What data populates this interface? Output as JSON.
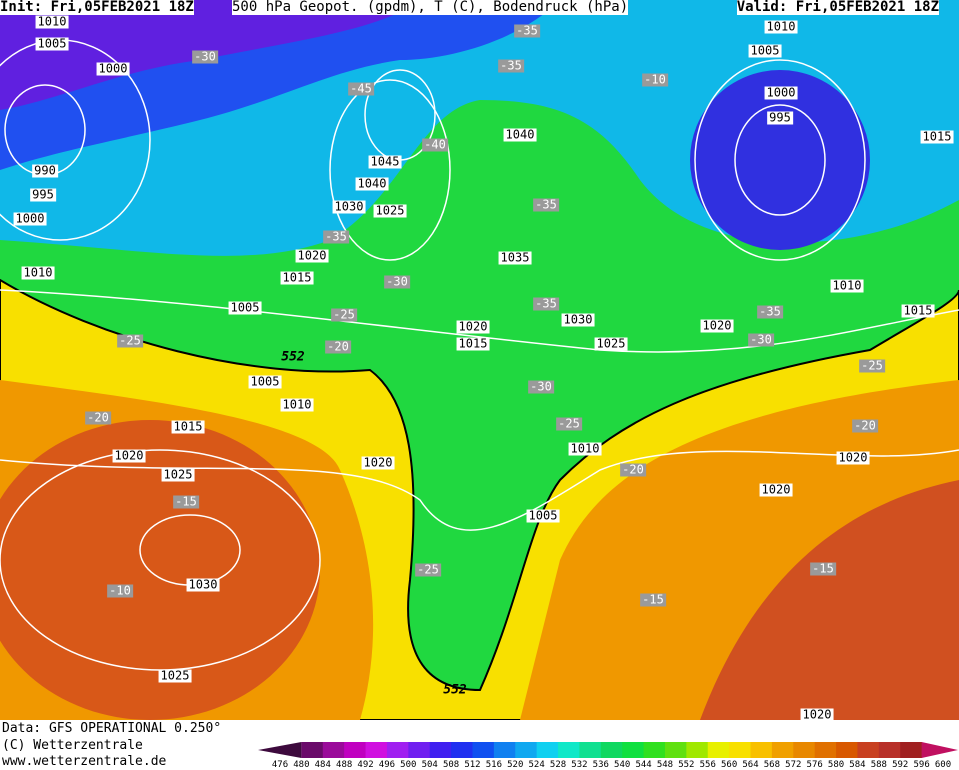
{
  "header": {
    "init": "Init: Fri,05FEB2021 18Z",
    "title": "500 hPa Geopot. (gpdm), T (C), Bodendruck (hPa)",
    "valid": "Valid: Fri,05FEB2021 18Z"
  },
  "pressure_labels": [
    1010,
    1005,
    1000,
    990,
    995,
    1000,
    1010,
    1045,
    1040,
    1030,
    1025,
    1020,
    1015,
    1005,
    1040,
    1035,
    1020,
    1015,
    1030,
    1025,
    1005,
    1010,
    1015,
    1020,
    1025,
    1020,
    1030,
    1025,
    1010,
    1005,
    1010,
    1005,
    1000,
    995,
    1015,
    1010,
    1015,
    1020,
    1020,
    1020,
    1020
  ],
  "temperature_labels": [
    -35,
    -30,
    -35,
    -10,
    -45,
    -40,
    -35,
    -35,
    -30,
    -25,
    -35,
    -25,
    -20,
    -35,
    -30,
    -30,
    -25,
    -25,
    -20,
    -20,
    -20,
    -15,
    -25,
    -10,
    -15,
    -15
  ],
  "contour_labels": [
    552,
    552
  ],
  "footer": {
    "source": "Data: GFS OPERATIONAL 0.250°",
    "copyright": "(C) Wetterzentrale",
    "url": "www.wetterzentrale.de"
  },
  "colorbar": {
    "labels": [
      476,
      480,
      484,
      488,
      492,
      496,
      500,
      504,
      508,
      512,
      516,
      520,
      524,
      528,
      532,
      536,
      540,
      544,
      548,
      552,
      556,
      560,
      564,
      568,
      572,
      576,
      580,
      584,
      588,
      592,
      596,
      600
    ],
    "colors": [
      "#3d0a3d",
      "#6a0a6a",
      "#9a0a9a",
      "#c000c0",
      "#d010e0",
      "#a020f0",
      "#7020f0",
      "#4020f0",
      "#2030f0",
      "#1050f0",
      "#1080f0",
      "#10a8f0",
      "#10d0f0",
      "#10e8c8",
      "#10e090",
      "#10d860",
      "#10e040",
      "#30e020",
      "#60e010",
      "#a0e800",
      "#e8f000",
      "#f8e000",
      "#f8c000",
      "#f0a000",
      "#e88800",
      "#e07000",
      "#d85800",
      "#c84020",
      "#b83028",
      "#a02020",
      "#c01060"
    ]
  }
}
